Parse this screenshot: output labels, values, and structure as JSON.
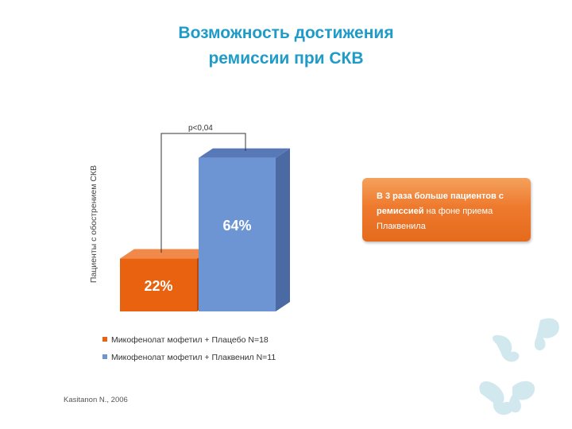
{
  "slide": {
    "title_line1": "Возможность достижения",
    "title_line2": "ремиссии при СКВ",
    "callout_bold1": "В 3 раза больше пациентов с",
    "callout_bold2": "ремиссией",
    "callout_rest": " на фоне приема",
    "callout_line3": "Плаквенила",
    "source": "Kasitanon N., 2006"
  },
  "chart_data": {
    "type": "bar",
    "ylabel": "Пациенты с обострением СКВ",
    "ylim": [
      0,
      100
    ],
    "categories": [
      "Микофенолат мофетил + Плацебо N=18",
      "Микофенолат мофетил + Плаквенил N=11"
    ],
    "values": [
      22,
      64
    ],
    "value_labels": [
      "22%",
      "64%"
    ],
    "colors": [
      "#e8620f",
      "#6d95d4"
    ],
    "side_colors": [
      "#b8490a",
      "#4b6aa3"
    ],
    "top_colors": [
      "#f0894a",
      "#5878b8"
    ],
    "legend": [
      "Микофенолат мофетил + Плацебо N=18",
      "Микофенолат мофетил + Плаквенил N=11"
    ],
    "annotation": "p<0,04"
  },
  "decor": {
    "butterfly_color": "#c9e4ec"
  }
}
